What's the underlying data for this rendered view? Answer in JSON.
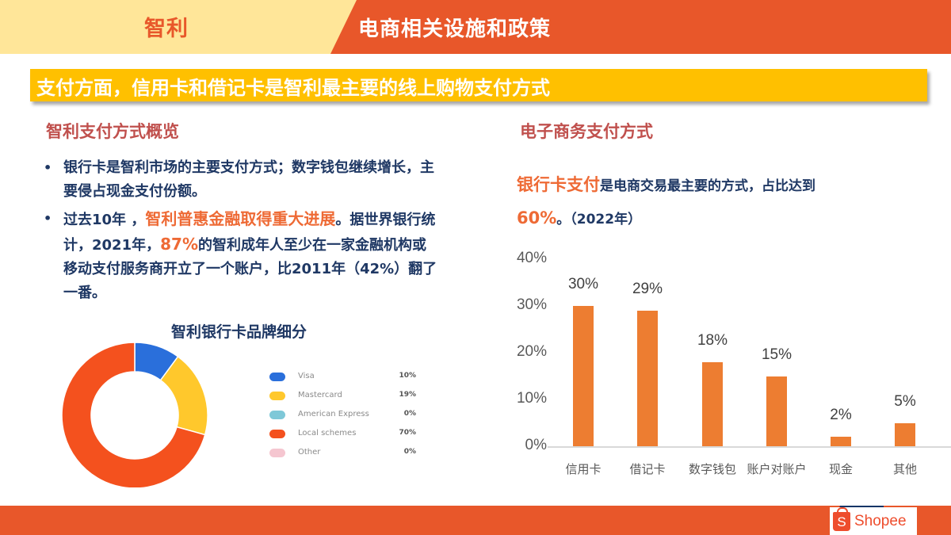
{
  "header": {
    "country": "智利",
    "section_title": "电商相关设施和政策",
    "colors": {
      "left_band": "#FFE699",
      "right_band": "#E8572A"
    }
  },
  "banner": {
    "text": "支付方面，信用卡和借记卡是智利最主要的线上购物支付方式",
    "color": "#FFC000"
  },
  "left": {
    "title": "智利支付方式概览",
    "bullets": [
      {
        "parts": [
          "银行卡是智利市场的主要支付方式；数字钱包继续增长，主要侵占现金支付份额。"
        ]
      },
      {
        "pre": "过去10年 ，",
        "highlight1": "智利普惠金融取得重大进展",
        "mid": "。据世界银行统计，2021年，",
        "highlight2": "87%",
        "post": "的智利成年人至少在一家金融机构或移动支付服务商开立了一个账户，比2011年（42%）翻了一番。"
      }
    ],
    "bullet_glyph": "•"
  },
  "right": {
    "title": "电子商务支付方式",
    "lead": {
      "highlight": "银行卡支付",
      "text": "是电商交易最主要的方式，占比达到",
      "value": "60%",
      "suffix": "。（2022年）"
    }
  },
  "footer": {
    "brand": "Shopee",
    "brand_glyph": "S",
    "colors": {
      "band": "#E8572A",
      "navy": "#0F3566",
      "brand": "#EE4D2D"
    }
  },
  "chart_data": [
    {
      "type": "pie",
      "variant": "donut",
      "title": "智利银行卡品牌细分",
      "categories": [
        "Visa",
        "Mastercard",
        "American Express",
        "Local schemes",
        "Other"
      ],
      "values": [
        10,
        19,
        0,
        70,
        0
      ],
      "labels": [
        "10%",
        "19%",
        "0%",
        "70%",
        "0%"
      ],
      "colors": [
        "#2A6FDB",
        "#FFC82C",
        "#7EC8D8",
        "#F4511E",
        "#F5C6D0"
      ],
      "legend_position": "right"
    },
    {
      "type": "bar",
      "title": "",
      "categories": [
        "信用卡",
        "借记卡",
        "数字钱包",
        "账户对账户",
        "现金",
        "其他"
      ],
      "values": [
        30,
        29,
        18,
        15,
        2,
        5
      ],
      "labels": [
        "30%",
        "29%",
        "18%",
        "15%",
        "2%",
        "5%"
      ],
      "yticks": [
        "0%",
        "10%",
        "20%",
        "30%",
        "40%"
      ],
      "ylim": [
        0,
        40
      ],
      "unit": "%",
      "color": "#ED7D31",
      "grid": false,
      "xlabel": "",
      "ylabel": ""
    }
  ]
}
